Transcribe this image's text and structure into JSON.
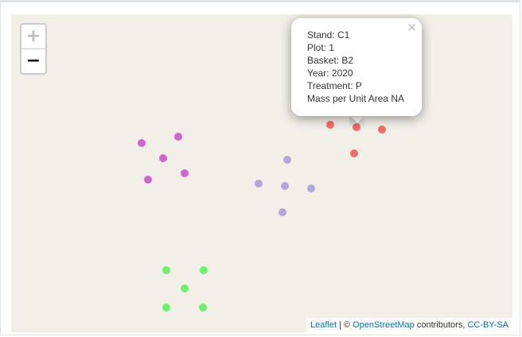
{
  "zoom": {
    "in_label": "+",
    "out_label": "−"
  },
  "popup": {
    "close_label": "×",
    "lines": [
      "Stand: C1",
      "Plot: 1",
      "Basket: B2",
      "Year: 2020",
      "Treatment: P",
      "Mass per Unit Area NA"
    ]
  },
  "attribution": {
    "leaflet": "Leaflet",
    "separator": " | © ",
    "osm": "OpenStreetMap",
    "contributors": " contributors, ",
    "license": "CC-BY-SA"
  },
  "colors": {
    "red": "#f25c5c",
    "purple": "#cc55cc",
    "lavender": "#a89fd8",
    "green": "#5cf25c"
  },
  "marker_groups": [
    {
      "color_key": "red",
      "count": 4
    },
    {
      "color_key": "purple",
      "count": 5
    },
    {
      "color_key": "lavender",
      "count": 5
    },
    {
      "color_key": "green",
      "count": 5
    }
  ]
}
